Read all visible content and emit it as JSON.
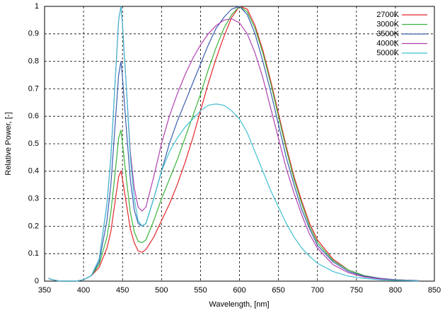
{
  "chart_data": {
    "type": "line",
    "xlabel": "Wavelength, [nm]",
    "ylabel": "Relative Power, [-]",
    "x": [
      355,
      360,
      370,
      380,
      390,
      400,
      410,
      420,
      430,
      435,
      440,
      445,
      448,
      450,
      455,
      460,
      465,
      470,
      475,
      480,
      490,
      500,
      510,
      520,
      530,
      540,
      550,
      560,
      570,
      580,
      590,
      600,
      610,
      620,
      630,
      640,
      650,
      660,
      670,
      680,
      690,
      700,
      720,
      740,
      760,
      780,
      800,
      830
    ],
    "series": [
      {
        "name": "2700K",
        "color": "#e3262b",
        "values": [
          0.01,
          0.005,
          0,
          0,
          0,
          0.005,
          0.02,
          0.05,
          0.12,
          0.18,
          0.28,
          0.38,
          0.4,
          0.37,
          0.28,
          0.19,
          0.14,
          0.11,
          0.105,
          0.115,
          0.16,
          0.22,
          0.28,
          0.35,
          0.43,
          0.52,
          0.62,
          0.72,
          0.81,
          0.89,
          0.96,
          1.0,
          0.99,
          0.93,
          0.84,
          0.73,
          0.61,
          0.49,
          0.38,
          0.29,
          0.21,
          0.15,
          0.08,
          0.04,
          0.02,
          0.01,
          0.005,
          0.002
        ]
      },
      {
        "name": "3000K",
        "color": "#3cb43c",
        "values": [
          0.01,
          0.005,
          0,
          0,
          0,
          0.005,
          0.02,
          0.06,
          0.16,
          0.25,
          0.38,
          0.52,
          0.55,
          0.5,
          0.37,
          0.25,
          0.18,
          0.145,
          0.14,
          0.15,
          0.22,
          0.3,
          0.37,
          0.44,
          0.52,
          0.6,
          0.68,
          0.77,
          0.85,
          0.92,
          0.97,
          1.0,
          0.98,
          0.92,
          0.83,
          0.72,
          0.6,
          0.48,
          0.37,
          0.28,
          0.2,
          0.14,
          0.075,
          0.04,
          0.02,
          0.01,
          0.005,
          0.002
        ]
      },
      {
        "name": "3500K",
        "color": "#3a5fb0",
        "values": [
          0.01,
          0.005,
          0,
          0,
          0,
          0.005,
          0.02,
          0.07,
          0.22,
          0.35,
          0.55,
          0.75,
          0.8,
          0.74,
          0.55,
          0.37,
          0.26,
          0.21,
          0.2,
          0.21,
          0.3,
          0.4,
          0.5,
          0.58,
          0.65,
          0.72,
          0.79,
          0.86,
          0.92,
          0.96,
          0.99,
          1.0,
          0.97,
          0.9,
          0.8,
          0.69,
          0.57,
          0.45,
          0.35,
          0.26,
          0.19,
          0.13,
          0.07,
          0.035,
          0.018,
          0.01,
          0.005,
          0.002
        ]
      },
      {
        "name": "4000K",
        "color": "#b040b0",
        "values": [
          0.01,
          0.005,
          0,
          0,
          0,
          0.005,
          0.02,
          0.08,
          0.28,
          0.45,
          0.7,
          0.95,
          1.0,
          0.93,
          0.7,
          0.47,
          0.34,
          0.27,
          0.255,
          0.27,
          0.38,
          0.5,
          0.6,
          0.68,
          0.75,
          0.81,
          0.86,
          0.9,
          0.93,
          0.95,
          0.955,
          0.94,
          0.9,
          0.83,
          0.74,
          0.63,
          0.52,
          0.41,
          0.32,
          0.24,
          0.17,
          0.12,
          0.06,
          0.03,
          0.015,
          0.008,
          0.004,
          0.002
        ]
      },
      {
        "name": "5000K",
        "color": "#40c0d0",
        "values": [
          0.01,
          0.005,
          0,
          0,
          0,
          0.005,
          0.02,
          0.08,
          0.28,
          0.45,
          0.7,
          0.95,
          1.0,
          0.93,
          0.7,
          0.45,
          0.3,
          0.22,
          0.2,
          0.21,
          0.3,
          0.4,
          0.47,
          0.52,
          0.56,
          0.59,
          0.62,
          0.64,
          0.645,
          0.64,
          0.62,
          0.59,
          0.54,
          0.47,
          0.4,
          0.33,
          0.27,
          0.21,
          0.16,
          0.12,
          0.09,
          0.065,
          0.035,
          0.018,
          0.01,
          0.005,
          0.003,
          0.001
        ]
      }
    ],
    "xlim": [
      350,
      850
    ],
    "xticks": [
      350,
      400,
      450,
      500,
      550,
      600,
      650,
      700,
      750,
      800,
      850
    ],
    "ylim": [
      0,
      1
    ],
    "yticks": [
      0,
      0.1,
      0.2,
      0.3,
      0.4,
      0.5,
      0.6,
      0.7,
      0.8,
      0.9,
      1
    ],
    "grid": true,
    "legend": "top-right"
  }
}
